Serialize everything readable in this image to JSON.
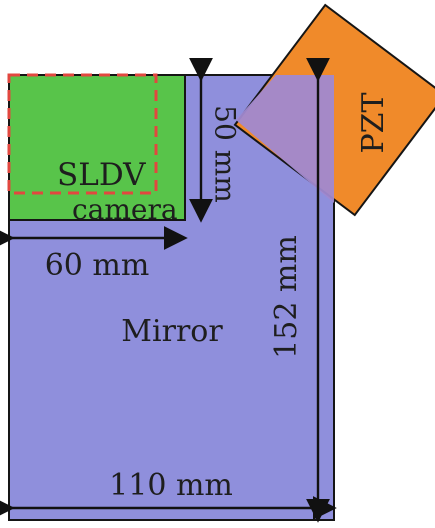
{
  "diagram": {
    "labels": {
      "pzt": "PZT",
      "sldv": "SLDV",
      "camera": "camera",
      "mirror": "Mirror",
      "width_camera": "60 mm",
      "height_camera": "50 mm",
      "height_mirror": "152 mm",
      "width_mirror": "110 mm"
    },
    "colors": {
      "mirror": "#8f8fdc",
      "camera": "#58c44a",
      "pzt": "#f08a2a",
      "overlap": "#a089d0",
      "dashed": "#e2473f",
      "outline": "#151515"
    }
  }
}
